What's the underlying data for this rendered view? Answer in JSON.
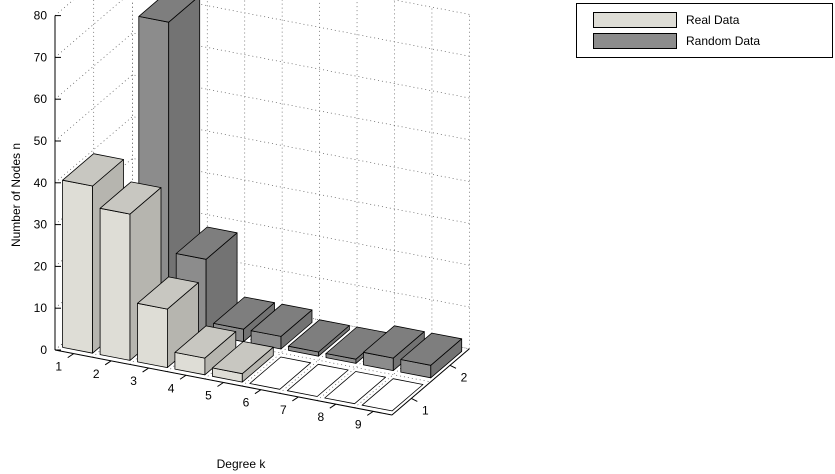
{
  "chart_data": {
    "type": "bar",
    "chart_style": "3d-grouped-bar",
    "xlabel": "Degree k",
    "ylabel": "Number of Nodes n",
    "x_ticks": [
      "1",
      "2",
      "3",
      "4",
      "5",
      "6",
      "7",
      "8",
      "9"
    ],
    "depth_ticks": [
      "1",
      "2"
    ],
    "y_ticks": [
      "0",
      "10",
      "20",
      "30",
      "40",
      "50",
      "60",
      "70",
      "80"
    ],
    "ylim": [
      0,
      80
    ],
    "grid": true,
    "legend_position": "top-right",
    "series": [
      {
        "name": "Real Data",
        "color": "#deddd6",
        "values": [
          40,
          35,
          14,
          4,
          2,
          0,
          0,
          0,
          0
        ]
      },
      {
        "name": "Random Data",
        "color": "#8c8c8c",
        "values": [
          0,
          73,
          18,
          3,
          3,
          1,
          1,
          3,
          3
        ]
      }
    ]
  }
}
